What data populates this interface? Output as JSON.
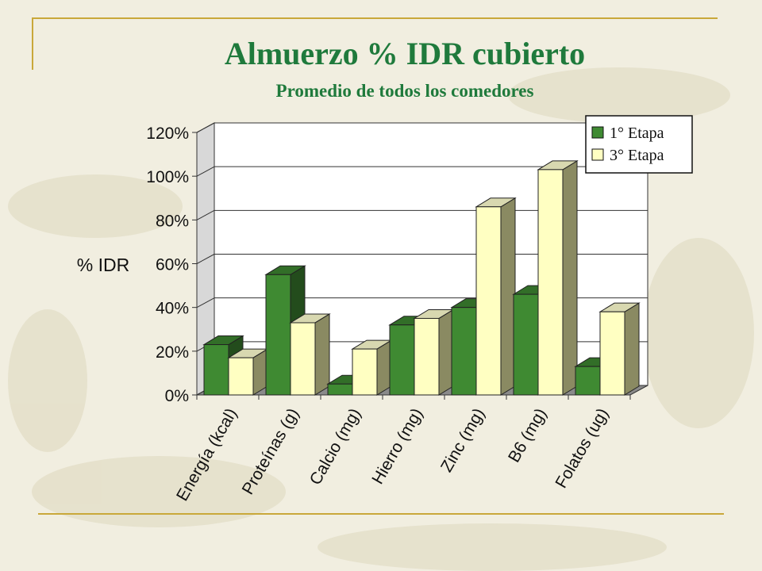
{
  "slide": {
    "title": "Almuerzo % IDR cubierto",
    "subtitle": "Promedio de todos los comedores"
  },
  "colors": {
    "background": "#f1eee0",
    "title": "#1f7a3c",
    "accent_line": "#c9a83a",
    "series1": "#3f8a32",
    "series2": "#ffffc2"
  },
  "chart_data": {
    "type": "bar",
    "ylabel": "% IDR",
    "xlabel": "",
    "ylim": [
      0,
      120
    ],
    "yticks": [
      "0%",
      "20%",
      "40%",
      "60%",
      "80%",
      "100%",
      "120%"
    ],
    "grid": true,
    "legend": "top-right",
    "categories": [
      "Energía (kcal)",
      "Proteínas (g)",
      "Calcio (mg)",
      "Hierro (mg)",
      "Zinc (mg)",
      "B6 (mg)",
      "Folatos (ug)"
    ],
    "series": [
      {
        "name": "1° Etapa",
        "values": [
          23,
          55,
          5,
          32,
          40,
          46,
          13
        ]
      },
      {
        "name": "3° Etapa",
        "values": [
          17,
          33,
          21,
          35,
          86,
          103,
          38
        ]
      }
    ]
  }
}
